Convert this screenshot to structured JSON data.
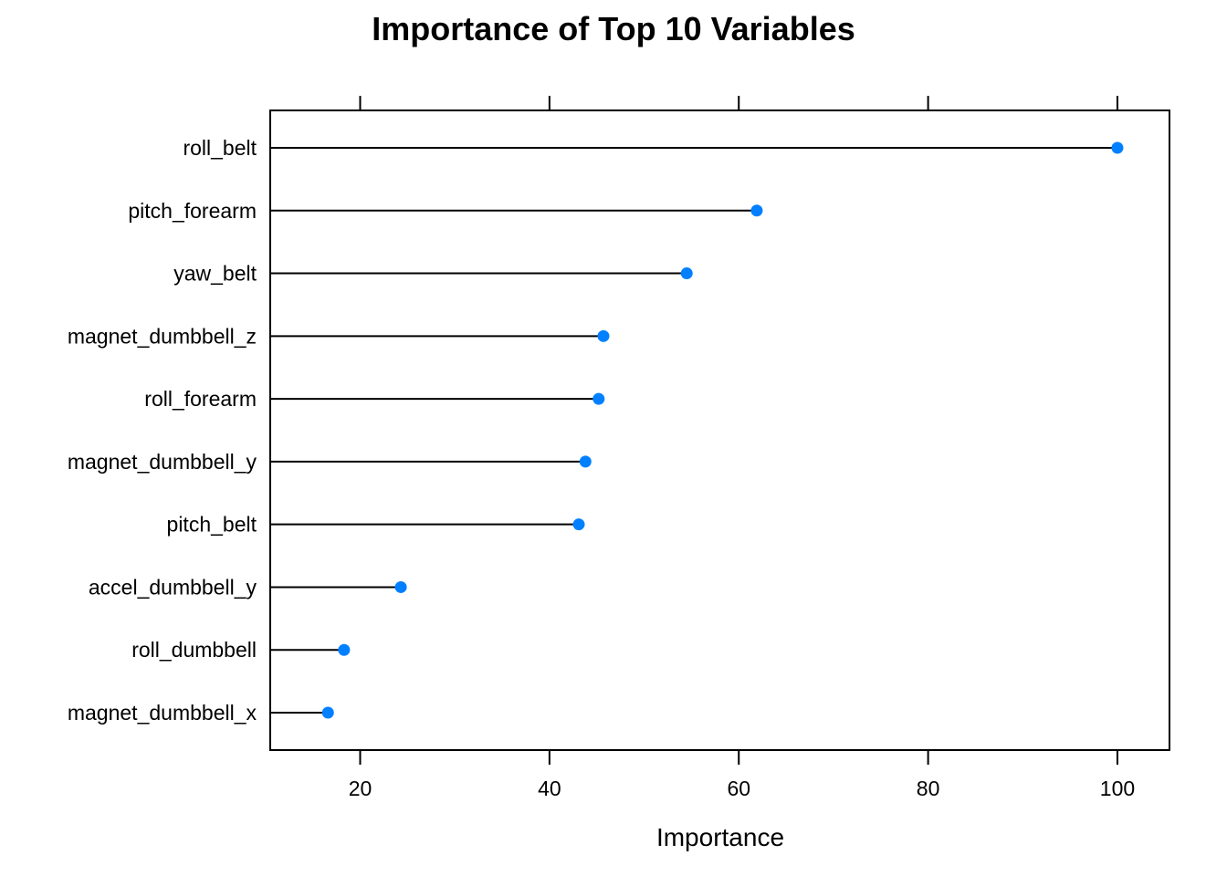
{
  "chart_data": {
    "type": "dotplot",
    "title": "Importance of Top 10 Variables",
    "xlabel": "Importance",
    "ylabel": "",
    "xlim": [
      10.5,
      105.5
    ],
    "xticks": [
      20,
      40,
      60,
      80,
      100
    ],
    "ticks_top": true,
    "grid": false,
    "legend": "none",
    "point_color": "#0080ff",
    "line_color": "#000000",
    "categories": [
      "roll_belt",
      "pitch_forearm",
      "yaw_belt",
      "magnet_dumbbell_z",
      "roll_forearm",
      "magnet_dumbbell_y",
      "pitch_belt",
      "accel_dumbbell_y",
      "roll_dumbbell",
      "magnet_dumbbell_x"
    ],
    "values": [
      100,
      61.9,
      54.5,
      45.7,
      45.2,
      43.8,
      43.1,
      24.3,
      18.3,
      16.6
    ]
  }
}
